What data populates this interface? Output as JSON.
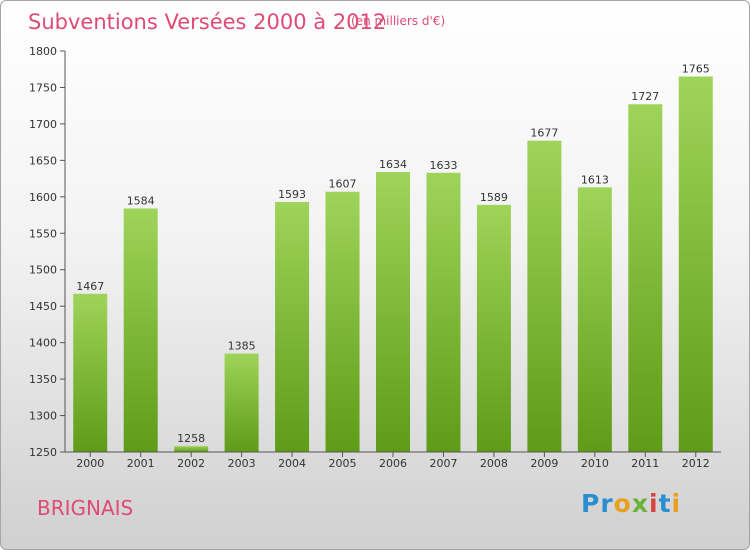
{
  "title": "Subventions Versées 2000 à 2012",
  "unit_note": "(en milliers d'€)",
  "commune": "BRIGNAIS",
  "brand": {
    "letters": [
      "P",
      "r",
      "o",
      "x",
      "i",
      "t",
      "i"
    ],
    "colors": [
      "#2a8fd0",
      "#2a8fd0",
      "#e8a020",
      "#6ab33a",
      "#d6453d",
      "#2a8fd0",
      "#e8a020"
    ]
  },
  "colors": {
    "accent": "#df4a76",
    "bar_top": "#9fd45a",
    "bar_bottom": "#5e9c18"
  },
  "chart_data": {
    "type": "bar",
    "title": "Subventions Versées 2000 à 2012",
    "xlabel": "",
    "ylabel": "",
    "categories": [
      "2000",
      "2001",
      "2002",
      "2003",
      "2004",
      "2005",
      "2006",
      "2007",
      "2008",
      "2009",
      "2010",
      "2011",
      "2012"
    ],
    "values": [
      1467,
      1584,
      1258,
      1385,
      1593,
      1607,
      1634,
      1633,
      1589,
      1677,
      1613,
      1727,
      1765
    ],
    "ylim": [
      1250,
      1800
    ],
    "yticks": [
      1250,
      1300,
      1350,
      1400,
      1450,
      1500,
      1550,
      1600,
      1650,
      1700,
      1750,
      1800
    ],
    "grid": false,
    "data_labels": true
  }
}
